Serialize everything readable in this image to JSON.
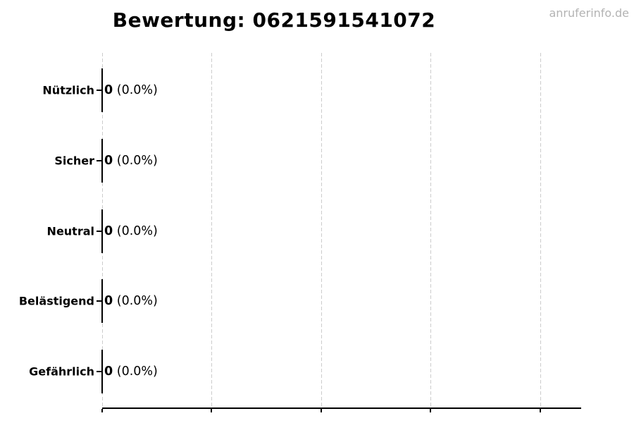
{
  "page": {
    "watermark": "anruferinfo.de"
  },
  "colors": {
    "text": "#000000",
    "watermark": "#b3b3b3",
    "gridline": "#cccccc",
    "axis": "#000000",
    "bar": "#000000",
    "background": "#ffffff"
  },
  "chart_data": {
    "type": "bar",
    "orientation": "horizontal",
    "title": "Bewertung: 0621591541072",
    "categories": [
      "Nützlich",
      "Sicher",
      "Neutral",
      "Belästigend",
      "Gefährlich"
    ],
    "values": [
      0,
      0,
      0,
      0,
      0
    ],
    "value_labels": [
      "0 (0.0%)",
      "0 (0.0%)",
      "0 (0.0%)",
      "0 (0.0%)",
      "0 (0.0%)"
    ],
    "xlabel": "",
    "ylabel": "",
    "x_tick_count": 5,
    "x_tick_labels_visible": false,
    "grid": {
      "axis": "x",
      "style": "dashed",
      "color": "#cccccc"
    },
    "legend": "none",
    "rows": [
      {
        "label": "Nützlich",
        "value": "0",
        "percent": "(0.0%)"
      },
      {
        "label": "Sicher",
        "value": "0",
        "percent": "(0.0%)"
      },
      {
        "label": "Neutral",
        "value": "0",
        "percent": "(0.0%)"
      },
      {
        "label": "Belästigend",
        "value": "0",
        "percent": "(0.0%)"
      },
      {
        "label": "Gefährlich",
        "value": "0",
        "percent": "(0.0%)"
      }
    ]
  }
}
